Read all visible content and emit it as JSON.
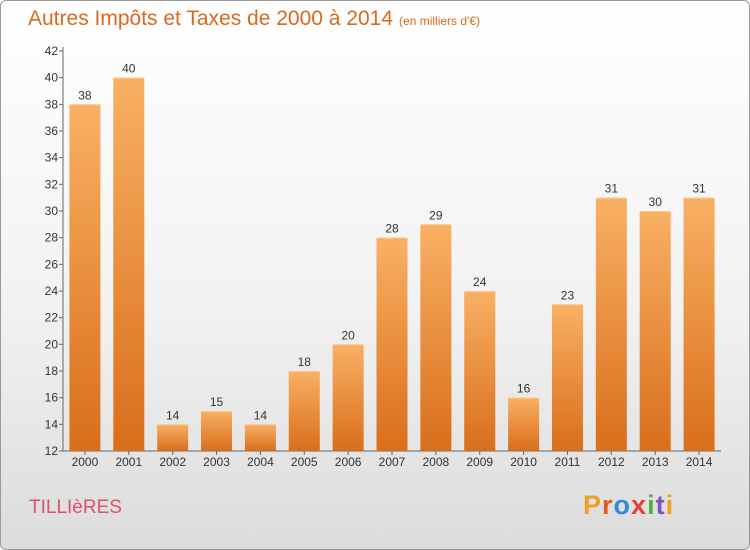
{
  "title": "Autres Impôts et Taxes de 2000 à 2014",
  "unit": "(en milliers d'€)",
  "commune": "TILLIèRES",
  "logo": {
    "text": "Proxiti",
    "colors": [
      "#f0a020",
      "#e05a1a",
      "#2f8ad8",
      "#e0403a",
      "#4ab43a",
      "#7a52c4",
      "#f0a020"
    ]
  },
  "colors": {
    "title": "#d86a1e",
    "commune": "#e0506a",
    "bar_light": "#f9b063",
    "bar_dark": "#d96e1b",
    "axis": "#666666"
  },
  "chart_data": {
    "type": "bar",
    "title": "Autres Impôts et Taxes de 2000 à 2014",
    "subtitle": "(en milliers d'€)",
    "xlabel": "",
    "ylabel": "",
    "categories": [
      "2000",
      "2001",
      "2002",
      "2003",
      "2004",
      "2005",
      "2006",
      "2007",
      "2008",
      "2009",
      "2010",
      "2011",
      "2012",
      "2013",
      "2014"
    ],
    "values": [
      38,
      40,
      14,
      15,
      14,
      18,
      20,
      28,
      29,
      24,
      16,
      23,
      31,
      30,
      31
    ],
    "ylim": [
      12,
      42
    ],
    "yticks": [
      12,
      14,
      16,
      18,
      20,
      22,
      24,
      26,
      28,
      30,
      32,
      34,
      36,
      38,
      40,
      42
    ],
    "grid": false,
    "data_labels": true
  }
}
